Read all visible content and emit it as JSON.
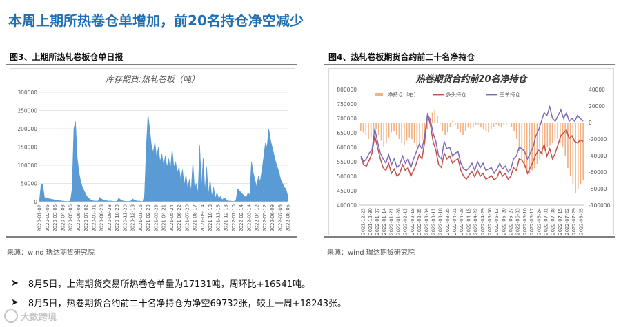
{
  "headline": "本周上期所热卷仓单增加，前20名持仓净空减少",
  "left_panel": {
    "figure_title": "图3、上期所热轧卷板仓单日报",
    "source": "来源：wind    瑞达期货研究院"
  },
  "right_panel": {
    "figure_title": "图4、热轧卷板期货合约前二十名净持仓",
    "source": "来源：wind    瑞达期货研究院"
  },
  "bullets": [
    "8月5日，上海期货交易所热卷仓单量为17131吨，周环比+16541吨。",
    "8月5日，热卷期货合约前二十名净持仓为净空69732张，较上一周+18243张。"
  ],
  "watermark": "大数跨境",
  "colors": {
    "headline": "#1f6fb5",
    "area": "#5b9bd5",
    "net": "#f4b183",
    "long": "#c0504d",
    "short": "#7e6bb5"
  },
  "chart_data": [
    {
      "type": "area",
      "title": "库存期货:热轧卷板（吨）",
      "ylim": [
        0,
        300000
      ],
      "yticks": [
        0,
        50000,
        100000,
        150000,
        200000,
        250000,
        300000
      ],
      "xticks": [
        "2020-01-02",
        "2020-02-05",
        "2020-03-06",
        "2020-04-03",
        "2020-05-06",
        "2020-06-03",
        "2020-07-02",
        "2020-07-31",
        "2020-08-28",
        "2020-09-28",
        "2020-10-23",
        "2020-11-20",
        "2020-12-18",
        "2021-01-16",
        "2021-02-23",
        "2021-03-23",
        "2021-04-21",
        "2021-05-24",
        "2021-06-22",
        "2021-07-20",
        "2021-08-17",
        "2021-09-14",
        "2021-10-18",
        "2021-11-15",
        "2021-12-13",
        "2022-01-10",
        "2022-02-14",
        "2022-03-14",
        "2022-04-12",
        "2022-05-12",
        "2022-06-09",
        "2022-07-08",
        "2022-08-05"
      ],
      "values": [
        0,
        48000,
        46000,
        12000,
        10000,
        9000,
        8000,
        7000,
        6000,
        5000,
        4000,
        3000,
        3000,
        2000,
        2000,
        1000,
        1000,
        1000,
        2000,
        35000,
        200000,
        220000,
        120000,
        80000,
        55000,
        40000,
        30000,
        20000,
        12000,
        8000,
        5000,
        3000,
        2000,
        2000,
        2000,
        12000,
        8000,
        5000,
        3000,
        3000,
        2000,
        2000,
        2000,
        1000,
        1000,
        1000,
        10000,
        6000,
        3000,
        2000,
        1000,
        1000,
        1000,
        2000,
        8000,
        5000,
        3000,
        2000,
        2000,
        1000,
        1000,
        20000,
        150000,
        240000,
        200000,
        155000,
        135000,
        165000,
        120000,
        150000,
        110000,
        132000,
        100000,
        125000,
        95000,
        118000,
        88000,
        145000,
        95000,
        110000,
        80000,
        95000,
        60000,
        88000,
        45000,
        75000,
        35000,
        62000,
        30000,
        110000,
        35000,
        50000,
        25000,
        155000,
        40000,
        120000,
        30000,
        95000,
        20000,
        60000,
        15000,
        40000,
        10000,
        25000,
        8000,
        15000,
        5000,
        10000,
        8000,
        3000,
        2000,
        2000,
        1000,
        1000,
        5000,
        35000,
        30000,
        25000,
        20000,
        15000,
        12000,
        25000,
        18000,
        110000,
        80000,
        60000,
        40000,
        70000,
        55000,
        85000,
        120000,
        160000,
        150000,
        200000,
        170000,
        150000,
        130000,
        110000,
        95000,
        80000,
        60000,
        50000,
        40000,
        35000,
        17131
      ]
    },
    {
      "type": "line",
      "title": "热卷期货合约前20名净持仓",
      "ylim": [
        400000,
        800000
      ],
      "yticks": [
        400000,
        450000,
        500000,
        550000,
        600000,
        650000,
        700000,
        750000,
        800000
      ],
      "y2lim": [
        -100000,
        40000
      ],
      "y2ticks": [
        -100000,
        -80000,
        -60000,
        -40000,
        -20000,
        0,
        20000,
        40000
      ],
      "xticks": [
        "2021-12-23",
        "2021-12-30",
        "2022-01-07",
        "2022-01-14",
        "2022-01-21",
        "2022-01-28",
        "2022-02-11",
        "2022-02-18",
        "2022-02-25",
        "2022-03-04",
        "2022-03-11",
        "2022-03-18",
        "2022-03-25",
        "2022-04-01",
        "2022-04-08",
        "2022-04-15",
        "2022-04-22",
        "2022-04-29",
        "2022-05-06",
        "2022-05-13",
        "2022-05-20",
        "2022-05-27",
        "2022-06-03",
        "2022-06-10",
        "2022-06-17",
        "2022-06-24",
        "2022-07-01",
        "2022-07-08",
        "2022-07-15",
        "2022-07-22",
        "2022-07-29",
        "2022-08-05"
      ],
      "series": [
        {
          "name": "净持仓（右）",
          "kind": "bar",
          "axis": "right",
          "values": [
            -10000,
            -12000,
            -15000,
            -20000,
            -18000,
            -12000,
            -8000,
            -15000,
            -22000,
            -30000,
            -25000,
            -18000,
            -12000,
            -10000,
            -15000,
            -20000,
            -25000,
            -28000,
            -22000,
            -18000,
            -20000,
            -25000,
            -30000,
            -28000,
            -22000,
            -15000,
            -8000,
            5000,
            12000,
            15000,
            8000,
            -2000,
            -10000,
            -15000,
            -12000,
            -5000,
            2000,
            -3000,
            -8000,
            -12000,
            -15000,
            -10000,
            -6000,
            -8000,
            -5000,
            -3000,
            -2000,
            -6000,
            -8000,
            -10000,
            -12000,
            -8000,
            -5000,
            -2000,
            -4000,
            -6000,
            -3000,
            -2000,
            -1000,
            -5000,
            -10000,
            -20000,
            -35000,
            -45000,
            -55000,
            -60000,
            -62000,
            -58000,
            -55000,
            -50000,
            -45000,
            -40000,
            -35000,
            -30000,
            -28000,
            -25000,
            -22000,
            -20000,
            -25000,
            -30000,
            -40000,
            -55000,
            -65000,
            -75000,
            -85000,
            -80000,
            -75000,
            -69732
          ]
        },
        {
          "name": "多头持仓",
          "kind": "line",
          "axis": "left",
          "values": [
            565000,
            540000,
            535000,
            555000,
            580000,
            640000,
            600000,
            560000,
            530000,
            520000,
            545000,
            510000,
            525000,
            500000,
            510000,
            540000,
            520000,
            530000,
            500000,
            520000,
            545000,
            575000,
            560000,
            620000,
            710000,
            680000,
            620000,
            590000,
            540000,
            530000,
            580000,
            560000,
            570000,
            545000,
            555000,
            560000,
            520000,
            500000,
            490000,
            505000,
            515000,
            498000,
            520000,
            500000,
            510000,
            490000,
            495000,
            502000,
            488000,
            495000,
            520000,
            500000,
            510000,
            490000,
            500000,
            530000,
            520000,
            560000,
            555000,
            540000,
            510000,
            530000,
            550000,
            575000,
            590000,
            580000,
            610000,
            570000,
            595000,
            560000,
            580000,
            610000,
            640000,
            650000,
            660000,
            630000,
            640000,
            620000,
            615000,
            625000,
            620000
          ]
        },
        {
          "name": "空单持仓",
          "kind": "line",
          "axis": "left",
          "values": [
            570000,
            550000,
            560000,
            580000,
            590000,
            665000,
            620000,
            580000,
            560000,
            545000,
            575000,
            540000,
            560000,
            530000,
            540000,
            570000,
            545000,
            560000,
            530000,
            560000,
            585000,
            610000,
            595000,
            640000,
            715000,
            695000,
            650000,
            620000,
            570000,
            560000,
            620000,
            595000,
            600000,
            570000,
            580000,
            585000,
            545000,
            525000,
            520000,
            530000,
            545000,
            520000,
            550000,
            530000,
            545000,
            520000,
            525000,
            530000,
            510000,
            525000,
            545000,
            525000,
            535000,
            515000,
            525000,
            560000,
            570000,
            600000,
            595000,
            585000,
            560000,
            580000,
            600000,
            640000,
            660000,
            690000,
            720000,
            710000,
            740000,
            700000,
            690000,
            710000,
            730000,
            700000,
            720000,
            690000,
            700000,
            690000,
            710000,
            700000,
            690000
          ]
        }
      ]
    }
  ]
}
